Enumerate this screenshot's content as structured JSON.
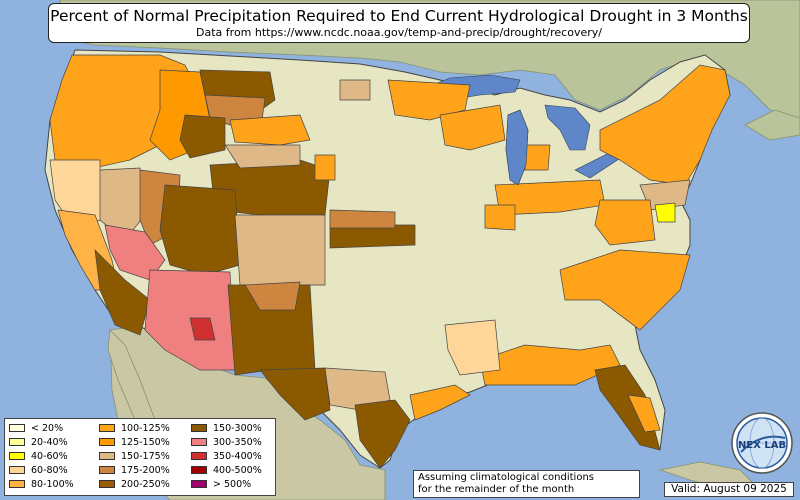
{
  "title": "Percent of Normal Precipitation Required to End Current Hydrological Drought in 3 Months",
  "subtitle": "Data from https://www.ncdc.noaa.gov/temp-and-precip/drought/recovery/",
  "legend": [
    {
      "label": "< 20%",
      "color": "#ffffe0"
    },
    {
      "label": "20-40%",
      "color": "#ffff99"
    },
    {
      "label": "40-60%",
      "color": "#ffff00"
    },
    {
      "label": "60-80%",
      "color": "#ffd699"
    },
    {
      "label": "80-100%",
      "color": "#ffb347"
    },
    {
      "label": "100-125%",
      "color": "#ffa31a"
    },
    {
      "label": "125-150%",
      "color": "#ff9900"
    },
    {
      "label": "150-175%",
      "color": "#deb887"
    },
    {
      "label": "175-200%",
      "color": "#cd853f"
    },
    {
      "label": "200-250%",
      "color": "#9a5b06"
    },
    {
      "label": "150-300%",
      "color": "#8b5a00"
    },
    {
      "label": "300-350%",
      "color": "#f08080"
    },
    {
      "label": "350-400%",
      "color": "#d03030"
    },
    {
      "label": "400-500%",
      "color": "#a00000"
    },
    {
      "label": "> 500%",
      "color": "#a0006a"
    }
  ],
  "note": {
    "line1": "Assuming climatological conditions",
    "line2": "for the remainder of the month"
  },
  "valid": "Valid: August 09 2025",
  "logo_text": "NEX LAB",
  "colors": {
    "ocean": "#8fb3de",
    "land": "#e6e6c3",
    "land_outside": "#b9c49a",
    "lake": "#5f86c9"
  }
}
